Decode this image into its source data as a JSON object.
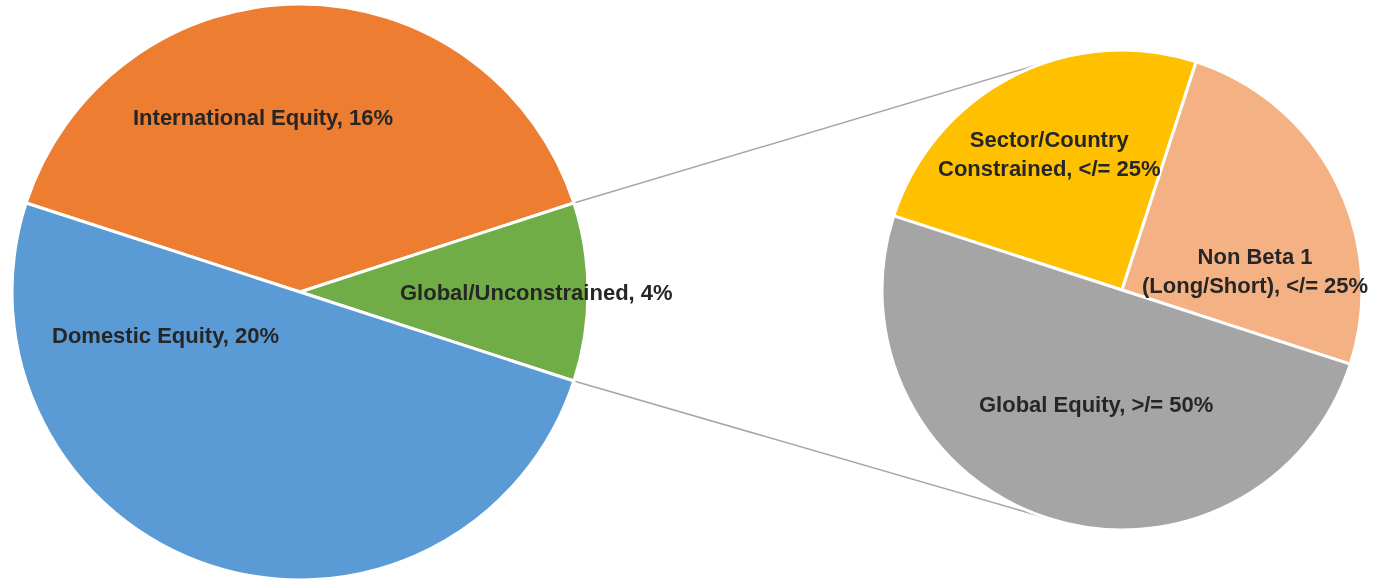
{
  "chart_data": [
    {
      "type": "pie",
      "categories": [
        "International Equity",
        "Global/Unconstrained",
        "Domestic Equity"
      ],
      "values": [
        16,
        4,
        20
      ],
      "colors": [
        "#ED7D31",
        "#70AD47",
        "#5B9BD5"
      ],
      "value_labels": [
        "16%",
        "4%",
        "20%"
      ]
    },
    {
      "type": "pie",
      "categories": [
        "Sector/Country Constrained",
        "Non Beta 1 (Long/Short)",
        "Global Equity"
      ],
      "values": [
        25,
        25,
        50
      ],
      "colors": [
        "#FFC000",
        "#F4B183",
        "#A5A5A5"
      ],
      "value_labels": [
        "</= 25%",
        "</= 25%",
        ">/= 50%"
      ]
    }
  ]
}
